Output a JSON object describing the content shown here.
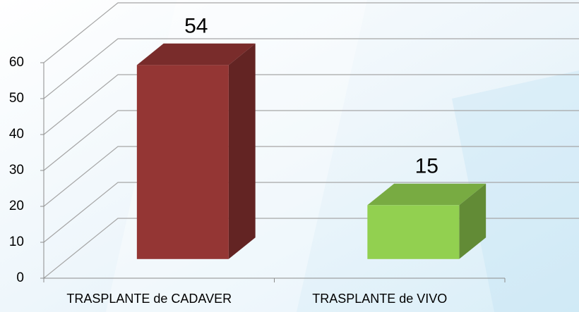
{
  "chart_data": {
    "type": "bar3d",
    "categories": [
      "TRASPLANTE de CADAVER",
      "TRASPLANTE de VIVO"
    ],
    "values": [
      54,
      15
    ],
    "colors": [
      "#943634",
      "#92d050"
    ],
    "ylim": [
      0,
      60
    ],
    "yticks": [
      0,
      10,
      20,
      30,
      40,
      50,
      60
    ],
    "grid": true
  }
}
